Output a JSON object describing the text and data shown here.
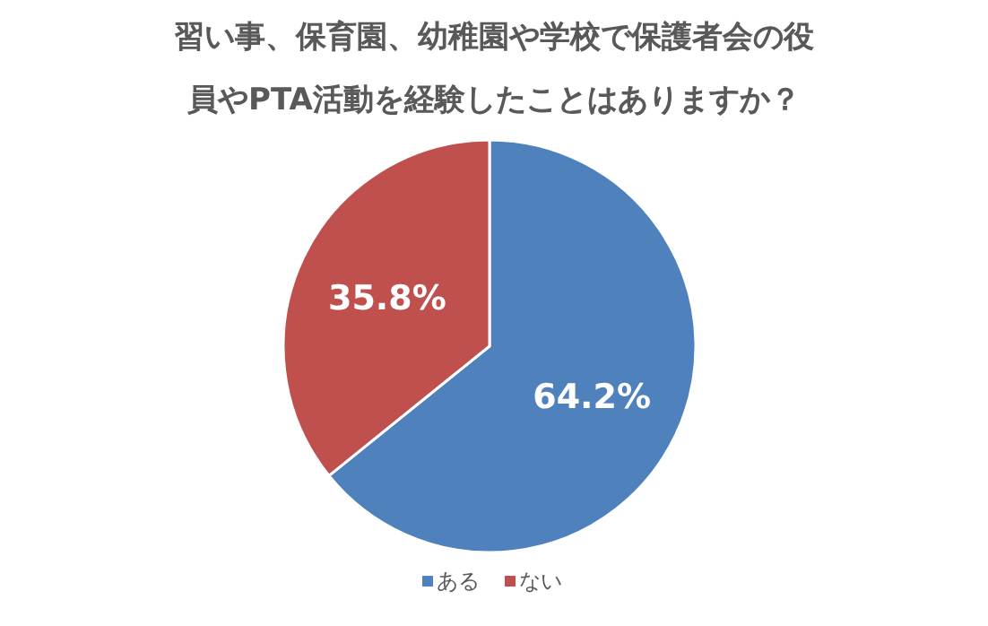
{
  "chart_data": {
    "type": "pie",
    "title": "習い事、保育園、幼稚園や学校で保護者会の役員やPTA活動を経験したことはありますか？",
    "categories": [
      "ある",
      "ない"
    ],
    "values": [
      64.2,
      35.8
    ],
    "value_labels": [
      "64.2%",
      "35.8%"
    ],
    "colors": [
      "#4f81bd",
      "#c0504d"
    ],
    "data_labels": true,
    "legend": "bottom"
  }
}
